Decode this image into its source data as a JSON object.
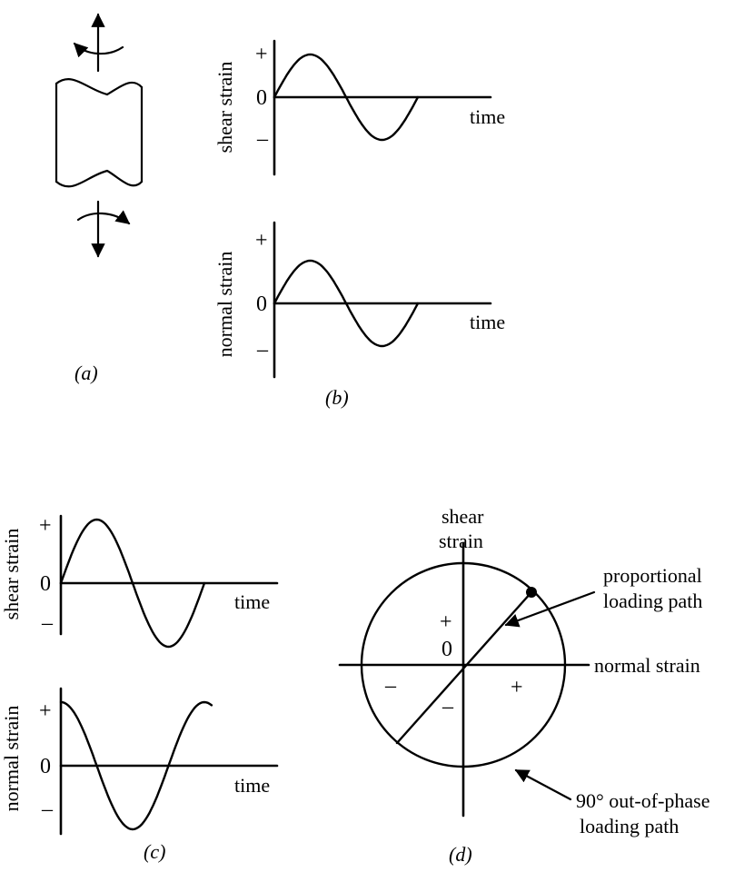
{
  "panel_a": {
    "label": "(a)"
  },
  "panel_b": {
    "label": "(b)",
    "top": {
      "ylabel": "shear strain",
      "plus": "+",
      "zero": "0",
      "minus": "–",
      "xlabel": "time"
    },
    "bottom": {
      "ylabel": "normal strain",
      "plus": "+",
      "zero": "0",
      "minus": "–",
      "xlabel": "time"
    }
  },
  "panel_c": {
    "label": "(c)",
    "top": {
      "ylabel": "shear strain",
      "plus": "+",
      "zero": "0",
      "minus": "–",
      "xlabel": "time"
    },
    "bottom": {
      "ylabel": "normal strain",
      "plus": "+",
      "zero": "0",
      "minus": "–",
      "xlabel": "time"
    }
  },
  "panel_d": {
    "label": "(d)",
    "yaxis_line1": "shear",
    "yaxis_line2": "strain",
    "xaxis": "normal strain",
    "plus_y": "+",
    "minus_y": "–",
    "plus_x": "+",
    "minus_x": "–",
    "zero": "0",
    "proportional_line1": "proportional",
    "proportional_line2": "loading path",
    "outofphase_line1": "90° out-of-phase",
    "outofphase_line2": "loading path"
  }
}
